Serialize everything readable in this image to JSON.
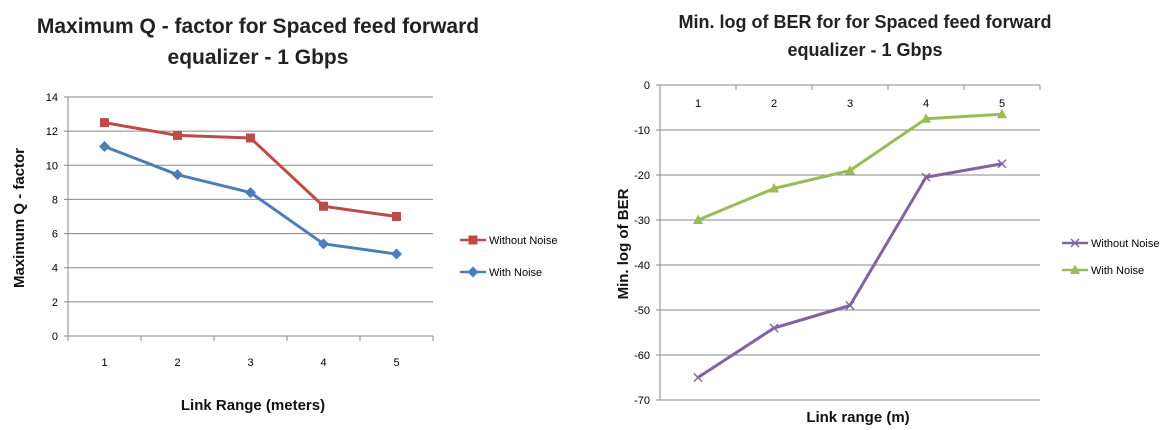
{
  "chart_data": [
    {
      "type": "line",
      "title_line1": "Maximum Q - factor for Spaced feed forward",
      "title_line2": "equalizer - 1 Gbps",
      "xlabel": "Link Range (meters)",
      "ylabel": "Maximum Q - factor",
      "x": [
        1,
        2,
        3,
        4,
        5
      ],
      "x_tick_labels": [
        "1",
        "2",
        "3",
        "4",
        "5"
      ],
      "y_ticks": [
        "0",
        "2",
        "4",
        "6",
        "8",
        "10",
        "12",
        "14"
      ],
      "ylim": [
        0,
        14
      ],
      "grid": "horizontal",
      "legend_position": "right",
      "series": [
        {
          "name": "Without Noise",
          "values": [
            12.5,
            11.75,
            11.6,
            7.6,
            7.0
          ],
          "color": "#be4b48",
          "marker": "square"
        },
        {
          "name": "With Noise",
          "values": [
            11.1,
            9.45,
            8.4,
            5.4,
            4.8
          ],
          "color": "#4a7ebb",
          "marker": "diamond"
        }
      ]
    },
    {
      "type": "line",
      "title_line1": "Min. log of BER for for Spaced feed forward",
      "title_line2": "equalizer - 1 Gbps",
      "xlabel": "Link range (m)",
      "ylabel": "Min. log  of BER",
      "x": [
        1,
        2,
        3,
        4,
        5
      ],
      "x_tick_labels": [
        "1",
        "2",
        "3",
        "4",
        "5"
      ],
      "x_axis_position": "top",
      "y_ticks": [
        "0",
        "-10",
        "-20",
        "-30",
        "-40",
        "-50",
        "-60",
        "-70"
      ],
      "ylim": [
        -70,
        0
      ],
      "grid": "horizontal",
      "legend_position": "right",
      "series": [
        {
          "name": "Without Noise",
          "values": [
            -65,
            -54,
            -49,
            -20.5,
            -17.5
          ],
          "color": "#8064a2",
          "marker": "x"
        },
        {
          "name": "With Noise",
          "values": [
            -30,
            -23,
            -19,
            -7.5,
            -6.5
          ],
          "color": "#9bbb59",
          "marker": "triangle"
        }
      ]
    }
  ]
}
